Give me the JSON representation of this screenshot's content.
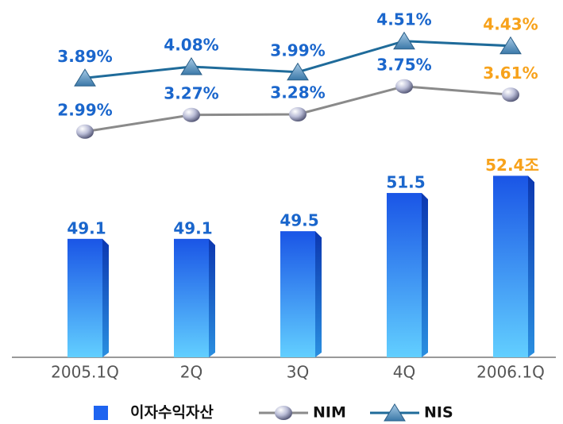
{
  "chart_data": {
    "type": "bar",
    "categories": [
      "2005.1Q",
      "2Q",
      "3Q",
      "4Q",
      "2006.1Q"
    ],
    "ylim": [
      42.9,
      61.6
    ],
    "y2lim": [
      -0.8,
      5.2
    ],
    "label_color": "#1a66cc",
    "highlight_color": "#f7a21b",
    "series": [
      {
        "name": "이자수익자산",
        "type": "bar",
        "color": "#1e64f0",
        "values": [
          49.1,
          49.1,
          49.5,
          51.5,
          52.4
        ],
        "value_labels": [
          "49.1",
          "49.1",
          "49.5",
          "51.5",
          "52.4조"
        ]
      },
      {
        "name": "NIM",
        "type": "line",
        "axis": "y2",
        "marker": "sphere",
        "color": "#8a8a8a",
        "values": [
          2.99,
          3.27,
          3.28,
          3.75,
          3.61
        ],
        "value_labels": [
          "2.99%",
          "3.27%",
          "3.28%",
          "3.75%",
          "3.61%"
        ]
      },
      {
        "name": "NIS",
        "type": "line",
        "axis": "y2",
        "marker": "triangle",
        "color": "#1f6b9a",
        "values": [
          3.89,
          4.08,
          3.99,
          4.51,
          4.43
        ],
        "value_labels": [
          "3.89%",
          "4.08%",
          "3.99%",
          "4.51%",
          "4.43%"
        ]
      }
    ]
  }
}
